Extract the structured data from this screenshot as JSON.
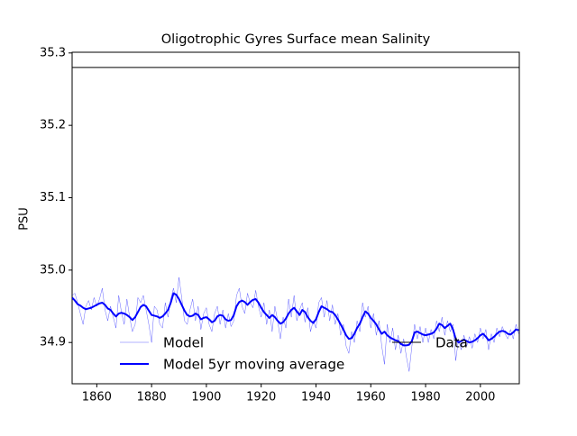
{
  "chart_data": {
    "type": "line",
    "title": "Oligotrophic Gyres Surface mean Salinity",
    "y_label": "PSU",
    "x": [
      1851,
      1852,
      1853,
      1854,
      1855,
      1856,
      1857,
      1858,
      1859,
      1860,
      1861,
      1862,
      1863,
      1864,
      1865,
      1866,
      1867,
      1868,
      1869,
      1870,
      1871,
      1872,
      1873,
      1874,
      1875,
      1876,
      1877,
      1878,
      1879,
      1880,
      1881,
      1882,
      1883,
      1884,
      1885,
      1886,
      1887,
      1888,
      1889,
      1890,
      1891,
      1892,
      1893,
      1894,
      1895,
      1896,
      1897,
      1898,
      1899,
      1900,
      1901,
      1902,
      1903,
      1904,
      1905,
      1906,
      1907,
      1908,
      1909,
      1910,
      1911,
      1912,
      1913,
      1914,
      1915,
      1916,
      1917,
      1918,
      1919,
      1920,
      1921,
      1922,
      1923,
      1924,
      1925,
      1926,
      1927,
      1928,
      1929,
      1930,
      1931,
      1932,
      1933,
      1934,
      1935,
      1936,
      1937,
      1938,
      1939,
      1940,
      1941,
      1942,
      1943,
      1944,
      1945,
      1946,
      1947,
      1948,
      1949,
      1950,
      1951,
      1952,
      1953,
      1954,
      1955,
      1956,
      1957,
      1958,
      1959,
      1960,
      1961,
      1962,
      1963,
      1964,
      1965,
      1966,
      1967,
      1968,
      1969,
      1970,
      1971,
      1972,
      1973,
      1974,
      1975,
      1976,
      1977,
      1978,
      1979,
      1980,
      1981,
      1982,
      1983,
      1984,
      1985,
      1986,
      1987,
      1988,
      1989,
      1990,
      1991,
      1992,
      1993,
      1994,
      1995,
      1996,
      1997,
      1998,
      1999,
      2000,
      2001,
      2002,
      2003,
      2004,
      2005,
      2006,
      2007,
      2008,
      2009,
      2010,
      2011,
      2012,
      2013,
      2014
    ],
    "series": [
      {
        "name": "Model",
        "color": "#0000ff",
        "linewidth": 0.5,
        "alpha": 0.6,
        "values": [
          34.965,
          34.968,
          34.955,
          34.94,
          34.925,
          34.95,
          34.958,
          34.945,
          34.962,
          34.95,
          34.96,
          34.975,
          34.945,
          34.93,
          34.95,
          34.935,
          34.92,
          34.965,
          34.942,
          34.925,
          34.96,
          34.935,
          34.915,
          34.925,
          34.962,
          34.955,
          34.965,
          34.945,
          34.925,
          34.9,
          34.95,
          34.945,
          34.925,
          34.92,
          34.955,
          34.935,
          34.96,
          34.975,
          34.955,
          34.99,
          34.962,
          34.93,
          34.925,
          34.945,
          34.96,
          34.93,
          34.95,
          34.918,
          34.94,
          34.948,
          34.925,
          34.915,
          34.94,
          34.95,
          34.925,
          34.945,
          34.92,
          34.94,
          34.922,
          34.93,
          34.965,
          34.975,
          34.95,
          34.94,
          34.968,
          34.955,
          34.948,
          34.972,
          34.95,
          34.935,
          34.955,
          34.925,
          34.945,
          34.915,
          34.95,
          34.93,
          34.905,
          34.935,
          34.92,
          34.96,
          34.935,
          34.965,
          34.93,
          34.945,
          34.955,
          34.928,
          34.948,
          34.915,
          34.93,
          34.92,
          34.955,
          34.962,
          34.935,
          34.958,
          34.93,
          34.952,
          34.925,
          34.94,
          34.91,
          34.925,
          34.895,
          34.885,
          34.915,
          34.9,
          34.93,
          34.915,
          34.955,
          34.935,
          34.95,
          34.92,
          34.94,
          34.91,
          34.93,
          34.895,
          34.87,
          34.925,
          34.9,
          34.92,
          34.89,
          34.91,
          34.885,
          34.905,
          34.88,
          34.86,
          34.895,
          34.925,
          34.905,
          34.922,
          34.9,
          34.92,
          34.9,
          34.918,
          34.905,
          34.93,
          34.915,
          34.935,
          34.91,
          34.93,
          34.915,
          34.925,
          34.875,
          34.905,
          34.89,
          34.91,
          34.895,
          34.908,
          34.892,
          34.912,
          34.9,
          34.92,
          34.905,
          34.918,
          34.89,
          34.912,
          34.9,
          34.92,
          34.908,
          34.922,
          34.912,
          34.905,
          34.918,
          34.905,
          34.925,
          34.912
        ]
      },
      {
        "name": "Model 5yr moving average",
        "color": "#0000ff",
        "linewidth": 2,
        "alpha": 1,
        "values": [
          34.962,
          34.958,
          34.953,
          34.951,
          34.948,
          34.946,
          34.947,
          34.948,
          34.95,
          34.952,
          34.954,
          34.955,
          34.952,
          34.947,
          34.945,
          34.94,
          34.936,
          34.94,
          34.941,
          34.94,
          34.938,
          34.935,
          34.931,
          34.935,
          34.942,
          34.949,
          34.952,
          34.95,
          34.944,
          34.938,
          34.937,
          34.936,
          34.934,
          34.936,
          34.94,
          34.945,
          34.955,
          34.968,
          34.966,
          34.96,
          34.952,
          34.944,
          34.938,
          34.936,
          34.937,
          34.94,
          34.938,
          34.932,
          34.934,
          34.935,
          34.932,
          34.928,
          34.93,
          34.936,
          34.938,
          34.937,
          34.932,
          34.93,
          34.931,
          34.938,
          34.95,
          34.956,
          34.958,
          34.956,
          34.952,
          34.956,
          34.959,
          34.96,
          34.955,
          34.948,
          34.942,
          34.938,
          34.934,
          34.938,
          34.935,
          34.93,
          34.926,
          34.928,
          34.933,
          34.94,
          34.945,
          34.948,
          34.943,
          34.938,
          34.945,
          34.942,
          34.935,
          34.93,
          34.927,
          34.932,
          34.942,
          34.95,
          34.948,
          34.946,
          34.943,
          34.942,
          34.938,
          34.932,
          34.925,
          34.918,
          34.91,
          34.905,
          34.906,
          34.912,
          34.92,
          34.926,
          34.935,
          34.943,
          34.94,
          34.934,
          34.93,
          34.925,
          34.918,
          34.912,
          34.915,
          34.91,
          34.907,
          34.905,
          34.903,
          34.902,
          34.898,
          34.896,
          34.896,
          34.897,
          34.902,
          34.914,
          34.915,
          34.913,
          34.911,
          34.91,
          34.911,
          34.912,
          34.914,
          34.919,
          34.926,
          34.924,
          34.92,
          34.923,
          34.926,
          34.918,
          34.905,
          34.9,
          34.902,
          34.904,
          34.902,
          34.9,
          34.901,
          34.903,
          34.906,
          34.91,
          34.912,
          34.908,
          34.903,
          34.905,
          34.908,
          34.912,
          34.915,
          34.916,
          34.915,
          34.912,
          34.911,
          34.914,
          34.918,
          34.917
        ]
      },
      {
        "name": "Data",
        "color": "#000000",
        "linewidth": 1,
        "alpha": 1,
        "value": 35.28
      }
    ],
    "xlim": [
      1851,
      2014.2
    ],
    "ylim": [
      34.843,
      35.301
    ],
    "xticks": [
      1860,
      1880,
      1900,
      1920,
      1940,
      1960,
      1980,
      2000
    ],
    "yticks": [
      34.9,
      {
        "value": 35,
        "label": "35.0"
      },
      35.1,
      35.2,
      35.3
    ],
    "grid": false,
    "legend": "lower center"
  }
}
